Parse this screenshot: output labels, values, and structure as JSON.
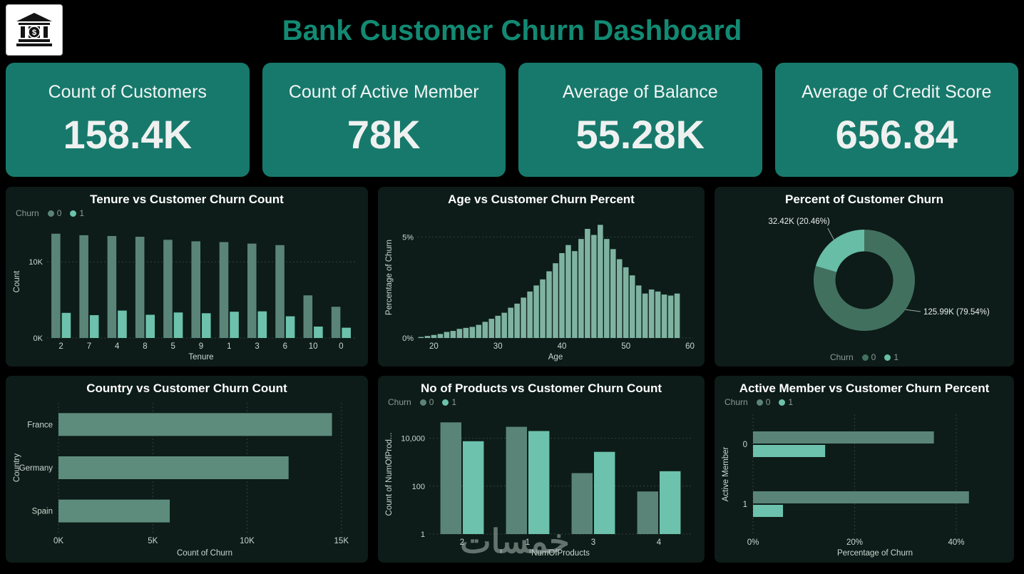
{
  "header": {
    "title": "Bank Customer Churn Dashboard"
  },
  "kpis": [
    {
      "label": "Count of Customers",
      "value": "158.4K"
    },
    {
      "label": "Count of Active Member",
      "value": "78K"
    },
    {
      "label": "Average of Balance",
      "value": "55.28K"
    },
    {
      "label": "Average of Credit Score",
      "value": "656.84"
    }
  ],
  "watermark": {
    "text": "خمسات"
  },
  "colors": {
    "page_bg": "#000000",
    "panel_bg": "#0d1c18",
    "card_bg": "#17796b",
    "title": "#128a73",
    "series0": "#5a8478",
    "series1": "#6cc2ac",
    "age_bar": "#7fb3a1",
    "donut0": "#42705f",
    "donut1": "#68bda7",
    "country_bar": "#5d8c7c",
    "tick_text": "#ccd6d1",
    "legend_text": "#8a9a94",
    "grid": "#31413c"
  },
  "chart_data": [
    {
      "type": "bar",
      "title": "Tenure vs Customer Churn Count",
      "xlabel": "Tenure",
      "ylabel": "Count",
      "legend": {
        "title": "Churn",
        "entries": [
          "0",
          "1"
        ]
      },
      "categories": [
        "2",
        "7",
        "4",
        "8",
        "5",
        "9",
        "1",
        "3",
        "6",
        "10",
        "0"
      ],
      "series": [
        {
          "name": "0",
          "values": [
            13700,
            13500,
            13400,
            13300,
            12900,
            12700,
            12600,
            12400,
            12200,
            5600,
            4100
          ]
        },
        {
          "name": "1",
          "values": [
            3300,
            3000,
            3600,
            3050,
            3350,
            3250,
            3450,
            3500,
            2850,
            1500,
            1350
          ]
        }
      ],
      "yticks": [
        {
          "label": "0K",
          "v": 0
        },
        {
          "label": "10K",
          "v": 10000
        }
      ],
      "ylim": [
        0,
        14800
      ],
      "margin_left": 50
    },
    {
      "type": "bar",
      "title": "Age vs Customer Churn Percent",
      "xlabel": "Age",
      "ylabel": "Percentage of Churn",
      "x": [
        18,
        19,
        20,
        21,
        22,
        23,
        24,
        25,
        26,
        27,
        28,
        29,
        30,
        31,
        32,
        33,
        34,
        35,
        36,
        37,
        38,
        39,
        40,
        41,
        42,
        43,
        44,
        45,
        46,
        47,
        48,
        49,
        50,
        51,
        52,
        53,
        54,
        55,
        56,
        57,
        58
      ],
      "values": [
        0.05,
        0.1,
        0.15,
        0.2,
        0.3,
        0.35,
        0.45,
        0.5,
        0.55,
        0.65,
        0.8,
        0.95,
        1.1,
        1.25,
        1.5,
        1.7,
        2.0,
        2.3,
        2.6,
        2.9,
        3.3,
        3.7,
        4.2,
        4.6,
        4.3,
        4.9,
        5.4,
        5.1,
        5.6,
        4.9,
        4.4,
        3.9,
        3.5,
        3.1,
        2.6,
        2.2,
        2.4,
        2.3,
        2.15,
        2.1,
        2.2
      ],
      "xticks": [
        20,
        30,
        40,
        50,
        60
      ],
      "xlim": [
        18,
        60
      ],
      "yticks": [
        {
          "label": "0%",
          "v": 0
        },
        {
          "label": "5%",
          "v": 5
        }
      ],
      "ylim": [
        0,
        6
      ]
    },
    {
      "type": "pie",
      "title": "Percent of Customer Churn",
      "slices": [
        {
          "name": "0",
          "value": 79.54,
          "label": "125.99K (79.54%)"
        },
        {
          "name": "1",
          "value": 20.46,
          "label": "32.42K (20.46%)"
        }
      ],
      "legend": {
        "title": "Churn",
        "entries": [
          "0",
          "1"
        ]
      }
    },
    {
      "type": "bar",
      "orientation": "horizontal",
      "title": "Country vs Customer Churn Count",
      "xlabel": "Count of Churn",
      "ylabel": "Country",
      "categories": [
        "France",
        "Germany",
        "Spain"
      ],
      "values": [
        14500,
        12200,
        5900
      ],
      "xticks": [
        {
          "label": "0K",
          "v": 0
        },
        {
          "label": "5K",
          "v": 5000
        },
        {
          "label": "10K",
          "v": 10000
        },
        {
          "label": "15K",
          "v": 15000
        }
      ],
      "xlim": [
        0,
        15500
      ],
      "margin_left": 66
    },
    {
      "type": "bar",
      "scale": "log",
      "title": "No of Products vs Customer Churn Count",
      "xlabel": "NumOfProducts",
      "ylabel": "Count of NumOfProd...",
      "legend": {
        "title": "Churn",
        "entries": [
          "0",
          "1"
        ]
      },
      "categories": [
        "2",
        "1",
        "3",
        "4"
      ],
      "series": [
        {
          "name": "0",
          "values": [
            46000,
            30000,
            350,
            60
          ]
        },
        {
          "name": "1",
          "values": [
            7500,
            20000,
            2700,
            420
          ]
        }
      ],
      "yticks": [
        {
          "label": "1",
          "v": 1
        },
        {
          "label": "100",
          "v": 100
        },
        {
          "label": "10,000",
          "v": 10000
        }
      ],
      "ylim": [
        1,
        100000
      ],
      "margin_left": 64
    },
    {
      "type": "bar",
      "orientation": "horizontal",
      "title": "Active Member vs Customer Churn Percent",
      "xlabel": "Percentage of Churn",
      "ylabel": "Active Member",
      "legend": {
        "title": "Churn",
        "entries": [
          "0",
          "1"
        ]
      },
      "categories": [
        "0",
        "1"
      ],
      "series": [
        {
          "name": "0",
          "values": [
            35.6,
            42.5
          ]
        },
        {
          "name": "1",
          "values": [
            14.2,
            5.9
          ]
        }
      ],
      "xticks": [
        {
          "label": "0%",
          "v": 0
        },
        {
          "label": "20%",
          "v": 20
        },
        {
          "label": "40%",
          "v": 40
        }
      ],
      "xlim": [
        0,
        48
      ]
    }
  ]
}
